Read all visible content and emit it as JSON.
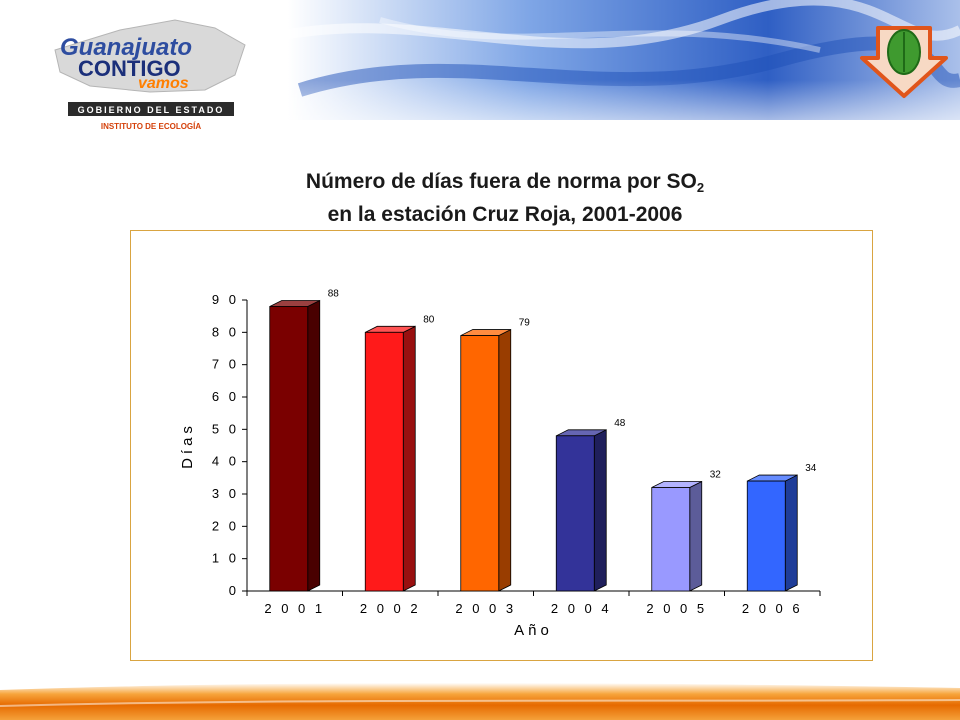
{
  "header": {
    "logo_line1": "Guanajuato",
    "logo_line2": "CONTIGO",
    "logo_line3": "vamos",
    "gov_label": "GOBIERNO DEL ESTADO",
    "institute_label": "INSTITUTO DE ECOLOGÍA",
    "icon": "leaf-down-arrow-icon"
  },
  "chart_data": {
    "type": "bar",
    "title_line1": "Número de días fuera de norma por SO",
    "title_sub": "2",
    "title_line2": "en la estación Cruz Roja, 2001-2006",
    "categories": [
      "2001",
      "2002",
      "2003",
      "2004",
      "2005",
      "2006"
    ],
    "values": [
      88,
      80,
      79,
      48,
      32,
      34
    ],
    "data_labels": [
      "88",
      "80",
      "79",
      "48",
      "32",
      "34"
    ],
    "ylabel": "Días",
    "xlabel": "Año",
    "ylim": [
      0,
      90
    ],
    "yticks": [
      "0",
      "10",
      "20",
      "30",
      "40",
      "50",
      "60",
      "70",
      "80",
      "90"
    ],
    "grid": false,
    "legend": "none",
    "bar_colors": [
      "#7a0000",
      "#ff1a1a",
      "#ff6600",
      "#333399",
      "#9999ff",
      "#3366ff"
    ]
  }
}
